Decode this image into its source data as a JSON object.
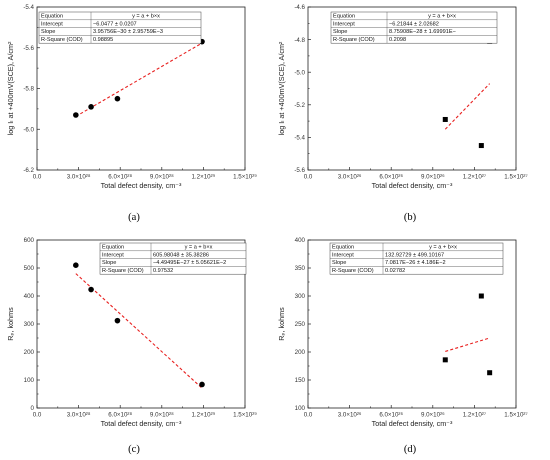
{
  "chart_data": [
    {
      "id": "a",
      "panel_label": "(a)",
      "type": "scatter",
      "xlabel": "Total defect density, cm⁻³",
      "ylabel": "log Iₗ at +400mV(SCE), A/cm²",
      "xlim": [
        0,
        1.5e+29
      ],
      "ylim": [
        -6.2,
        -5.4
      ],
      "xticks": [
        0,
        3e+28,
        6e+28,
        9e+28,
        1.2e+29,
        1.5e+29
      ],
      "xtick_labels": [
        "0.0",
        "3.0×10²⁸",
        "6.0×10²⁸",
        "9.0×10²⁸",
        "1.2×10²⁹",
        "1.5×10²⁹"
      ],
      "yticks": [
        -6.2,
        -6.0,
        -5.8,
        -5.6,
        -5.4
      ],
      "ytick_labels": [
        "-6.2",
        "-6.0",
        "-5.8",
        "-5.6",
        "-5.4"
      ],
      "marker": "circle",
      "points": [
        {
          "x": 2.8e+28,
          "y": -5.93
        },
        {
          "x": 3.9e+28,
          "y": -5.89
        },
        {
          "x": 5.8e+28,
          "y": -5.85
        },
        {
          "x": 1.19e+29,
          "y": -5.57
        }
      ],
      "fit": {
        "x": [
          2.8e+28,
          1.19e+29
        ],
        "y": [
          -5.937,
          -5.577
        ]
      },
      "fit_table": {
        "rows": [
          {
            "label": "Equation",
            "value": "y = a + b×x"
          },
          {
            "label": "Intercept",
            "value": "−6.0477 ± 0.0207"
          },
          {
            "label": "Slope",
            "value": "3.95756E−30 ± 2.95759E−3"
          },
          {
            "label": "R-Square (COD)",
            "value": "0.98895"
          }
        ]
      }
    },
    {
      "id": "b",
      "panel_label": "(b)",
      "type": "scatter",
      "xlabel": "Total defect density, cm⁻³",
      "ylabel": "log Iₗ at +400mV(SCE), A/cm²",
      "xlim": [
        0,
        1.5e+27
      ],
      "ylim": [
        -5.6,
        -4.6
      ],
      "xticks": [
        0,
        3e+26,
        6e+26,
        9e+26,
        1.2e+27,
        1.5e+27
      ],
      "xtick_labels": [
        "0.0",
        "3.0×10²⁶",
        "6.0×10²⁶",
        "9.0×10²⁶",
        "1.2×10²⁷",
        "1.5×10²⁷"
      ],
      "yticks": [
        -5.6,
        -5.4,
        -5.2,
        -5.0,
        -4.8,
        -4.6
      ],
      "ytick_labels": [
        "-5.6",
        "-5.4",
        "-5.2",
        "-5.0",
        "-4.8",
        "-4.6"
      ],
      "marker": "square",
      "points": [
        {
          "x": 9.9e+26,
          "y": -5.29
        },
        {
          "x": 1.25e+27,
          "y": -5.45
        },
        {
          "x": 1.31e+27,
          "y": -4.81
        }
      ],
      "fit": {
        "x": [
          9.9e+26,
          1.31e+27
        ],
        "y": [
          -5.35,
          -5.07
        ]
      },
      "fit_table": {
        "rows": [
          {
            "label": "Equation",
            "value": "y = a + b×x"
          },
          {
            "label": "Intercept",
            "value": "−6.21844 ± 2.02682"
          },
          {
            "label": "Slope",
            "value": "8.75908E−28 ± 1.69991E−"
          },
          {
            "label": "R-Square (COD)",
            "value": "0.2098"
          }
        ]
      }
    },
    {
      "id": "c",
      "panel_label": "(c)",
      "type": "scatter",
      "xlabel": "Total defect density, cm⁻³",
      "ylabel": "Rₚ, kohms",
      "xlim": [
        0,
        1.5e+29
      ],
      "ylim": [
        0,
        600
      ],
      "xticks": [
        0,
        3e+28,
        6e+28,
        9e+28,
        1.2e+29,
        1.5e+29
      ],
      "xtick_labels": [
        "0.0",
        "3.0×10²⁸",
        "6.0×10²⁸",
        "9.0×10²⁸",
        "1.2×10²⁹",
        "1.5×10²⁹"
      ],
      "yticks": [
        0,
        100,
        200,
        300,
        400,
        500,
        600
      ],
      "ytick_labels": [
        "0",
        "100",
        "200",
        "300",
        "400",
        "500",
        "600"
      ],
      "marker": "circle",
      "points": [
        {
          "x": 2.8e+28,
          "y": 510
        },
        {
          "x": 3.9e+28,
          "y": 423
        },
        {
          "x": 5.8e+28,
          "y": 312
        },
        {
          "x": 1.19e+29,
          "y": 84
        }
      ],
      "fit": {
        "x": [
          2.8e+28,
          1.19e+29
        ],
        "y": [
          480,
          71
        ]
      },
      "fit_table": {
        "rows": [
          {
            "label": "Equation",
            "value": "y = a + b×x"
          },
          {
            "label": "Intercept",
            "value": "605.98048 ± 35.38286"
          },
          {
            "label": "Slope",
            "value": "−4.49495E−27 ± 5.05621E−2"
          },
          {
            "label": "R-Square (COD)",
            "value": "0.97532"
          }
        ]
      }
    },
    {
      "id": "d",
      "panel_label": "(d)",
      "type": "scatter",
      "xlabel": "Total defect density, cm⁻³",
      "ylabel": "Rₚ, kohms",
      "xlim": [
        0,
        1.5e+27
      ],
      "ylim": [
        100,
        400
      ],
      "xticks": [
        0,
        3e+26,
        6e+26,
        9e+26,
        1.2e+27,
        1.5e+27
      ],
      "xtick_labels": [
        "0.0",
        "3.0×10²⁶",
        "6.0×10²⁶",
        "9.0×10²⁶",
        "1.2×10²⁷",
        "1.5×10²⁷"
      ],
      "yticks": [
        100,
        150,
        200,
        250,
        300,
        350,
        400
      ],
      "ytick_labels": [
        "100",
        "150",
        "200",
        "250",
        "300",
        "350",
        "400"
      ],
      "marker": "square",
      "points": [
        {
          "x": 9.9e+26,
          "y": 186
        },
        {
          "x": 1.25e+27,
          "y": 300
        },
        {
          "x": 1.31e+27,
          "y": 163
        }
      ],
      "fit": {
        "x": [
          9.9e+26,
          1.31e+27
        ],
        "y": [
          201,
          225
        ]
      },
      "fit_table": {
        "rows": [
          {
            "label": "Equation",
            "value": "y = a + b×x"
          },
          {
            "label": "Intercept",
            "value": "132.92729 ± 499.10167"
          },
          {
            "label": "Slope",
            "value": "7.0817E−26 ± 4.186E−2"
          },
          {
            "label": "R-Square (COD)",
            "value": "0.02782"
          }
        ]
      }
    }
  ]
}
